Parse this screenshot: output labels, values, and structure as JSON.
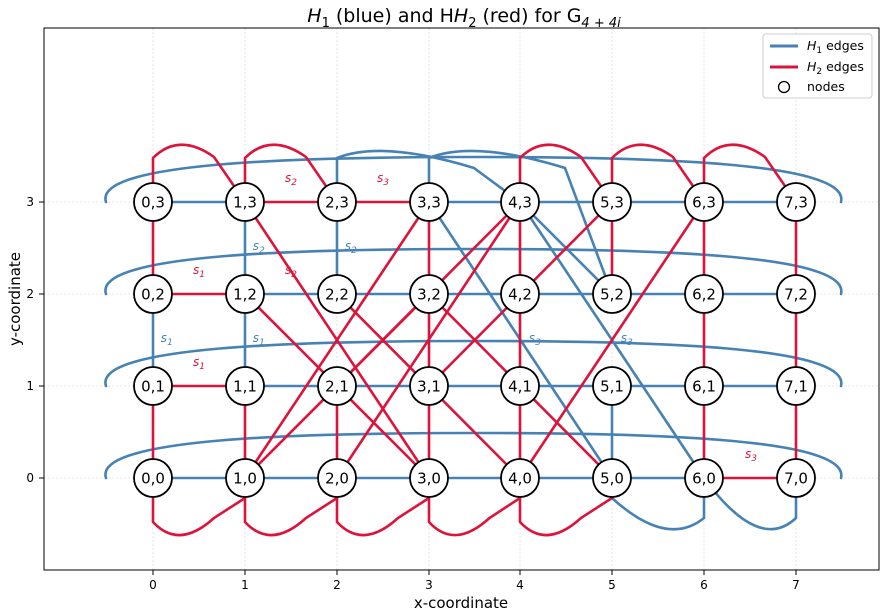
{
  "title": {
    "pre": "H",
    "sub1": "1",
    "mid": " (blue) and H",
    "sub2": "2",
    "post": " (red) for G",
    "sub3": "4 + 4i"
  },
  "xlabel": "x-coordinate",
  "ylabel": "y-coordinate",
  "xticks": [
    "0",
    "1",
    "2",
    "3",
    "4",
    "5",
    "6",
    "7"
  ],
  "yticks": [
    "0",
    "1",
    "2",
    "3"
  ],
  "legend": {
    "position": "top-right",
    "items": [
      {
        "sym": "H",
        "sub": "1",
        "text": " edges",
        "kind": "line",
        "color": "#4682b4"
      },
      {
        "sym": "H",
        "sub": "2",
        "text": " edges",
        "kind": "line",
        "color": "#dc143c"
      },
      {
        "text": "nodes",
        "kind": "circle"
      }
    ]
  },
  "colors": {
    "h1": "#4682b4",
    "h2": "#dc143c"
  },
  "nodes": [
    {
      "id": "0,0",
      "x": 0,
      "y": 0
    },
    {
      "id": "1,0",
      "x": 1,
      "y": 0
    },
    {
      "id": "2,0",
      "x": 2,
      "y": 0
    },
    {
      "id": "3,0",
      "x": 3,
      "y": 0
    },
    {
      "id": "4,0",
      "x": 4,
      "y": 0
    },
    {
      "id": "5,0",
      "x": 5,
      "y": 0
    },
    {
      "id": "6,0",
      "x": 6,
      "y": 0
    },
    {
      "id": "7,0",
      "x": 7,
      "y": 0
    },
    {
      "id": "0,1",
      "x": 0,
      "y": 1
    },
    {
      "id": "1,1",
      "x": 1,
      "y": 1
    },
    {
      "id": "2,1",
      "x": 2,
      "y": 1
    },
    {
      "id": "3,1",
      "x": 3,
      "y": 1
    },
    {
      "id": "4,1",
      "x": 4,
      "y": 1
    },
    {
      "id": "5,1",
      "x": 5,
      "y": 1
    },
    {
      "id": "6,1",
      "x": 6,
      "y": 1
    },
    {
      "id": "7,1",
      "x": 7,
      "y": 1
    },
    {
      "id": "0,2",
      "x": 0,
      "y": 2
    },
    {
      "id": "1,2",
      "x": 1,
      "y": 2
    },
    {
      "id": "2,2",
      "x": 2,
      "y": 2
    },
    {
      "id": "3,2",
      "x": 3,
      "y": 2
    },
    {
      "id": "4,2",
      "x": 4,
      "y": 2
    },
    {
      "id": "5,2",
      "x": 5,
      "y": 2
    },
    {
      "id": "6,2",
      "x": 6,
      "y": 2
    },
    {
      "id": "7,2",
      "x": 7,
      "y": 2
    },
    {
      "id": "0,3",
      "x": 0,
      "y": 3
    },
    {
      "id": "1,3",
      "x": 1,
      "y": 3
    },
    {
      "id": "2,3",
      "x": 2,
      "y": 3
    },
    {
      "id": "3,3",
      "x": 3,
      "y": 3
    },
    {
      "id": "4,3",
      "x": 4,
      "y": 3
    },
    {
      "id": "5,3",
      "x": 5,
      "y": 3
    },
    {
      "id": "6,3",
      "x": 6,
      "y": 3
    },
    {
      "id": "7,3",
      "x": 7,
      "y": 3
    }
  ],
  "annotations": [
    {
      "sym": "s",
      "sub": "2",
      "x": 1.5,
      "y": 3.22,
      "color": "red"
    },
    {
      "sym": "s",
      "sub": "3",
      "x": 2.5,
      "y": 3.22,
      "color": "red"
    },
    {
      "sym": "s",
      "sub": "2",
      "x": 1.15,
      "y": 2.48,
      "color": "blue"
    },
    {
      "sym": "s",
      "sub": "2",
      "x": 2.15,
      "y": 2.48,
      "color": "blue"
    },
    {
      "sym": "s",
      "sub": "1",
      "x": 0.5,
      "y": 2.22,
      "color": "red"
    },
    {
      "sym": "s",
      "sub": "2",
      "x": 1.5,
      "y": 2.22,
      "color": "red"
    },
    {
      "sym": "s",
      "sub": "1",
      "x": 0.15,
      "y": 1.48,
      "color": "blue"
    },
    {
      "sym": "s",
      "sub": "1",
      "x": 1.15,
      "y": 1.48,
      "color": "blue"
    },
    {
      "sym": "s",
      "sub": "3",
      "x": 4.15,
      "y": 1.48,
      "color": "blue"
    },
    {
      "sym": "s",
      "sub": "3",
      "x": 5.15,
      "y": 1.48,
      "color": "blue"
    },
    {
      "sym": "s",
      "sub": "1",
      "x": 0.5,
      "y": 1.22,
      "color": "red"
    },
    {
      "sym": "s",
      "sub": "3",
      "x": 6.5,
      "y": 0.22,
      "color": "red"
    }
  ]
}
